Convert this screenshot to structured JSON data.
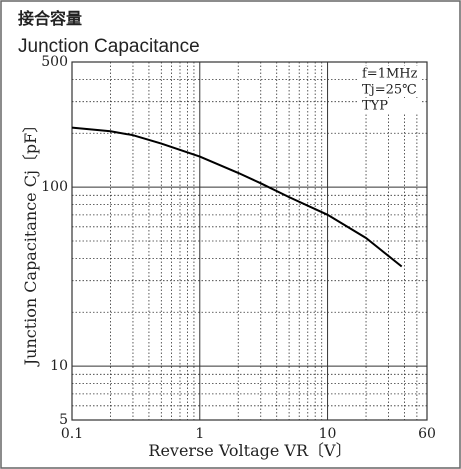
{
  "chart_data": {
    "type": "line",
    "title": "接合容量",
    "subtitle": "Junction Capacitance",
    "x_label": "Reverse Voltage  VR〔V〕",
    "y_label": "Junction Capacitance  Cj〔pF〕",
    "annotations": [
      "f=1MHz",
      "Tj=25℃",
      "TYP"
    ],
    "x": [
      0.1,
      0.2,
      0.3,
      0.5,
      1,
      2,
      3,
      5,
      10,
      20,
      38
    ],
    "values": [
      215,
      205,
      195,
      175,
      148,
      120,
      105,
      88,
      70,
      52,
      36
    ],
    "color": "#000000",
    "x_log": true,
    "y_log": true,
    "xlim": [
      0.1,
      60
    ],
    "ylim": [
      5,
      500
    ],
    "xticks": [
      0.1,
      1,
      10,
      60
    ],
    "yticks": [
      5,
      10,
      100,
      500
    ],
    "xticks_minor": [
      0.2,
      0.3,
      0.4,
      0.5,
      0.6,
      0.7,
      0.8,
      0.9,
      2,
      3,
      4,
      5,
      6,
      7,
      8,
      9,
      20,
      30,
      40,
      50
    ],
    "yticks_minor": [
      6,
      7,
      8,
      9,
      20,
      30,
      40,
      50,
      60,
      70,
      80,
      90,
      200,
      300,
      400
    ],
    "grid": true
  }
}
